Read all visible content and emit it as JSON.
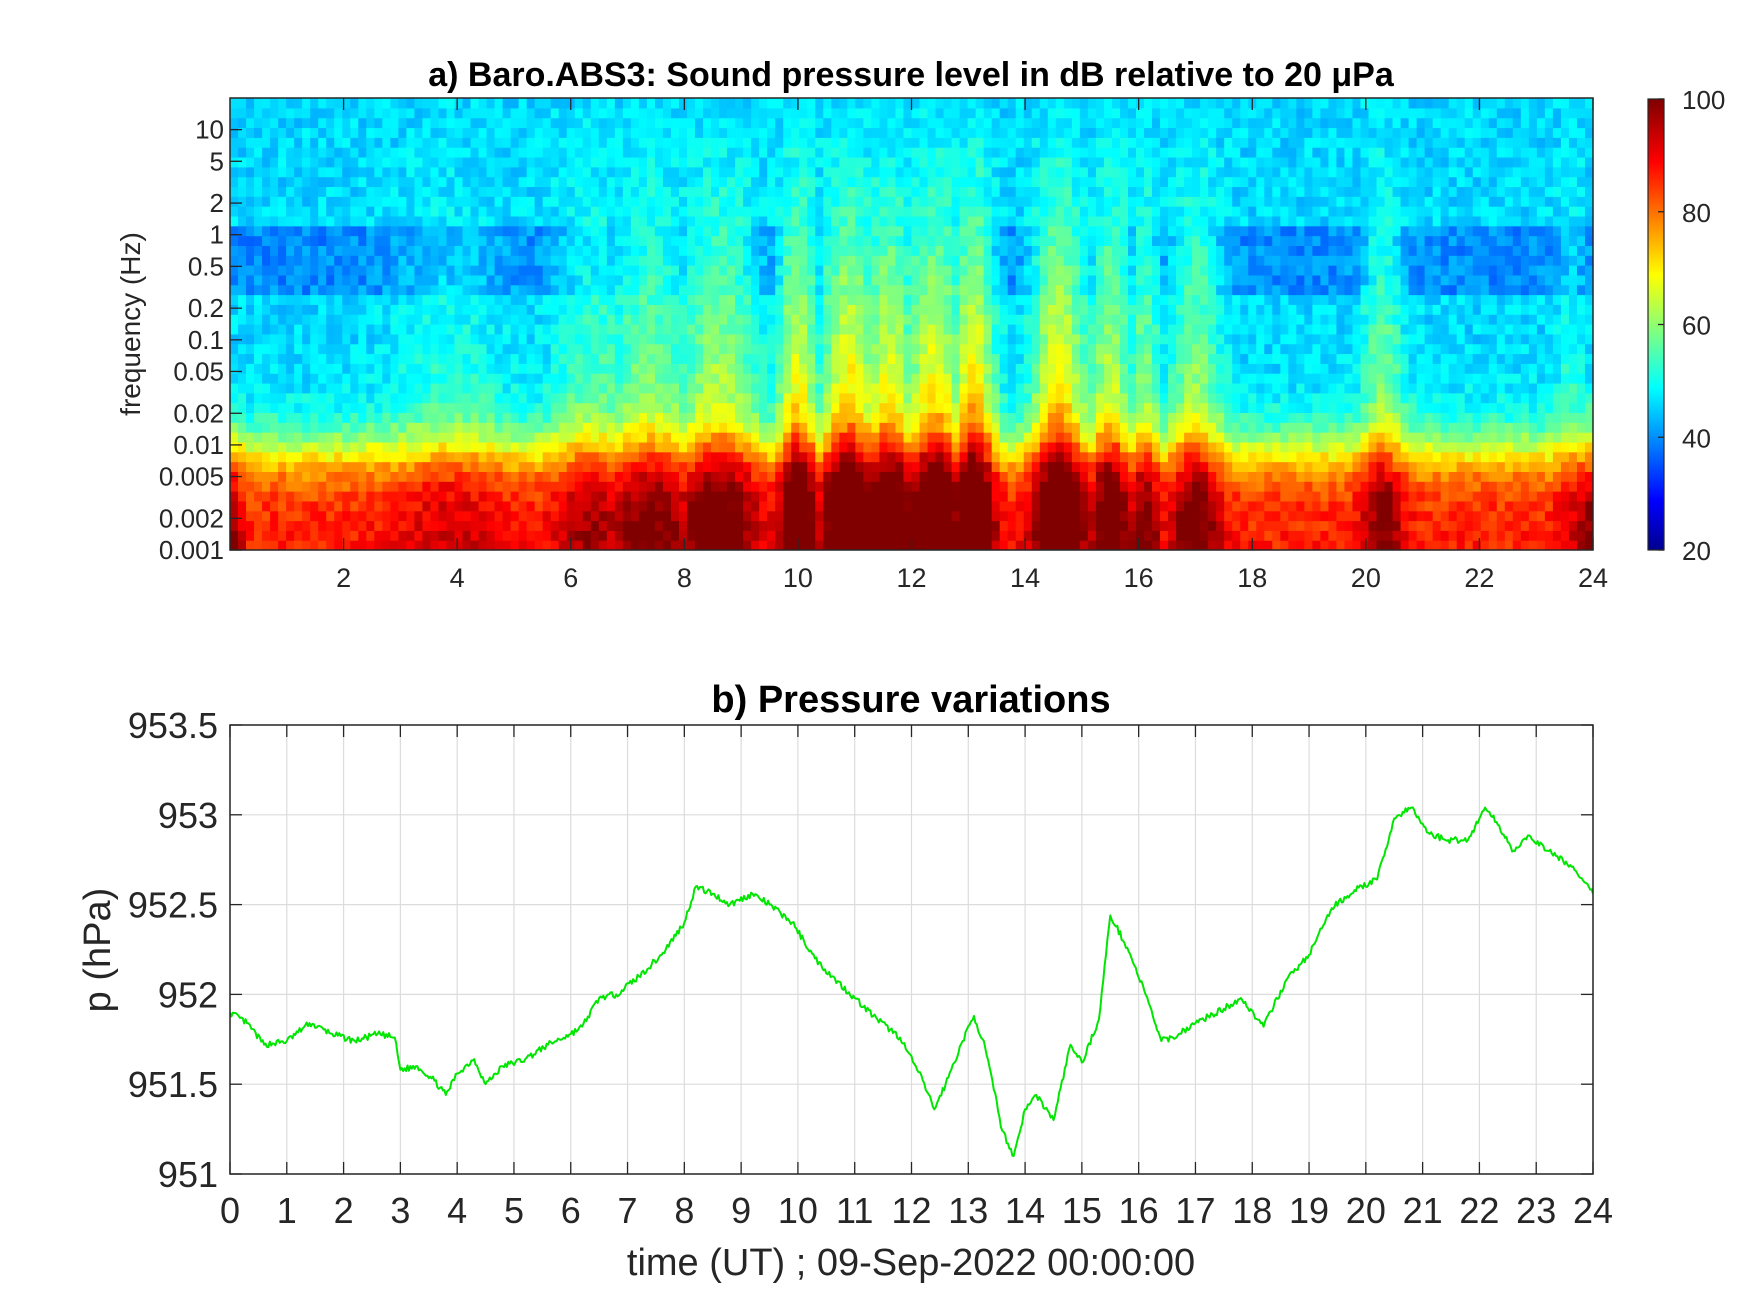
{
  "chart_data": [
    {
      "type": "heatmap",
      "title": "a) Baro.ABS3: Sound pressure level in dB relative to 20 μPa",
      "xlabel": "",
      "ylabel": "frequency (Hz)",
      "xlim": [
        0,
        24
      ],
      "ylim": [
        0.001,
        20
      ],
      "y_scale": "log",
      "x_ticks": [
        "2",
        "4",
        "6",
        "8",
        "10",
        "12",
        "14",
        "16",
        "18",
        "20",
        "22",
        "24"
      ],
      "y_ticks": [
        "0.001",
        "0.002",
        "0.005",
        "0.01",
        "0.02",
        "0.05",
        "0.1",
        "0.2",
        "0.5",
        "1",
        "2",
        "5",
        "10"
      ],
      "colorbar": {
        "min": 20,
        "max": 100,
        "ticks": [
          "20",
          "40",
          "60",
          "80",
          "100"
        ],
        "colormap": "jet"
      },
      "grid": false,
      "low_freq_level_db": 88,
      "high_freq_level_db": 47,
      "activity_bursts": [
        {
          "time_h": 3.9,
          "width_h": 1.0,
          "strength_db": 6
        },
        {
          "time_h": 6.4,
          "width_h": 0.7,
          "strength_db": 10
        },
        {
          "time_h": 7.4,
          "width_h": 0.8,
          "strength_db": 14
        },
        {
          "time_h": 8.6,
          "width_h": 0.7,
          "strength_db": 18
        },
        {
          "time_h": 10.0,
          "width_h": 0.35,
          "strength_db": 24
        },
        {
          "time_h": 10.9,
          "width_h": 0.5,
          "strength_db": 26
        },
        {
          "time_h": 11.6,
          "width_h": 0.45,
          "strength_db": 24
        },
        {
          "time_h": 12.4,
          "width_h": 0.5,
          "strength_db": 25
        },
        {
          "time_h": 13.1,
          "width_h": 0.35,
          "strength_db": 28
        },
        {
          "time_h": 14.6,
          "width_h": 0.45,
          "strength_db": 27
        },
        {
          "time_h": 15.5,
          "width_h": 0.35,
          "strength_db": 20
        },
        {
          "time_h": 16.1,
          "width_h": 0.3,
          "strength_db": 14
        },
        {
          "time_h": 17.0,
          "width_h": 0.45,
          "strength_db": 16
        },
        {
          "time_h": 20.3,
          "width_h": 0.35,
          "strength_db": 14
        },
        {
          "time_h": 23.6,
          "width_h": 0.25,
          "strength_db": 6
        }
      ]
    },
    {
      "type": "line",
      "title": "b) Pressure variations",
      "xlabel": "time (UT) ; 09-Sep-2022 00:00:00",
      "ylabel": "p (hPa)",
      "xlim": [
        0,
        24
      ],
      "ylim": [
        951,
        953.5
      ],
      "grid": true,
      "x_ticks": [
        "0",
        "1",
        "2",
        "3",
        "4",
        "5",
        "6",
        "7",
        "8",
        "9",
        "10",
        "11",
        "12",
        "13",
        "14",
        "15",
        "16",
        "17",
        "18",
        "19",
        "20",
        "21",
        "22",
        "23",
        "24"
      ],
      "y_ticks": [
        "951",
        "951.5",
        "952",
        "952.5",
        "953",
        "953.5"
      ],
      "line_color": "#00e600",
      "series": [
        {
          "x": [
            0,
            0.3,
            0.6,
            1.0,
            1.4,
            1.8,
            2.2,
            2.6,
            2.9,
            3.0,
            3.3,
            3.6,
            3.8,
            4.0,
            4.3,
            4.5,
            4.8,
            5.2,
            5.6,
            6.0,
            6.2,
            6.5,
            6.8,
            7.2,
            7.6,
            8.0,
            8.2,
            8.5,
            8.8,
            9.2,
            9.5,
            9.9,
            10.3,
            10.6,
            11.0,
            11.4,
            11.8,
            12.2,
            12.4,
            12.6,
            12.9,
            13.1,
            13.3,
            13.6,
            13.8,
            14.0,
            14.2,
            14.5,
            14.8,
            15.0,
            15.3,
            15.5,
            15.8,
            16.1,
            16.4,
            16.6,
            17.0,
            17.5,
            17.8,
            18.2,
            18.6,
            19.0,
            19.4,
            19.8,
            20.2,
            20.5,
            20.8,
            21.1,
            21.4,
            21.8,
            22.1,
            22.3,
            22.6,
            22.9,
            23.2,
            23.6,
            24.0
          ],
          "values": [
            951.9,
            951.84,
            951.72,
            951.74,
            951.84,
            951.78,
            951.74,
            951.78,
            951.76,
            951.58,
            951.6,
            951.52,
            951.44,
            951.56,
            951.64,
            951.5,
            951.6,
            951.64,
            951.72,
            951.78,
            951.82,
            951.98,
            952.0,
            952.1,
            952.22,
            952.4,
            952.6,
            952.56,
            952.5,
            952.56,
            952.5,
            952.4,
            952.2,
            952.1,
            951.98,
            951.86,
            951.76,
            951.52,
            951.36,
            951.5,
            951.74,
            951.88,
            951.7,
            951.24,
            951.1,
            951.36,
            951.44,
            951.3,
            951.72,
            951.62,
            951.86,
            952.44,
            952.26,
            952.02,
            951.74,
            951.76,
            951.84,
            951.92,
            951.98,
            951.82,
            952.08,
            952.22,
            952.48,
            952.58,
            952.64,
            952.98,
            953.04,
            952.9,
            952.86,
            952.86,
            953.04,
            952.96,
            952.8,
            952.88,
            952.8,
            952.72,
            952.56
          ]
        }
      ]
    }
  ]
}
